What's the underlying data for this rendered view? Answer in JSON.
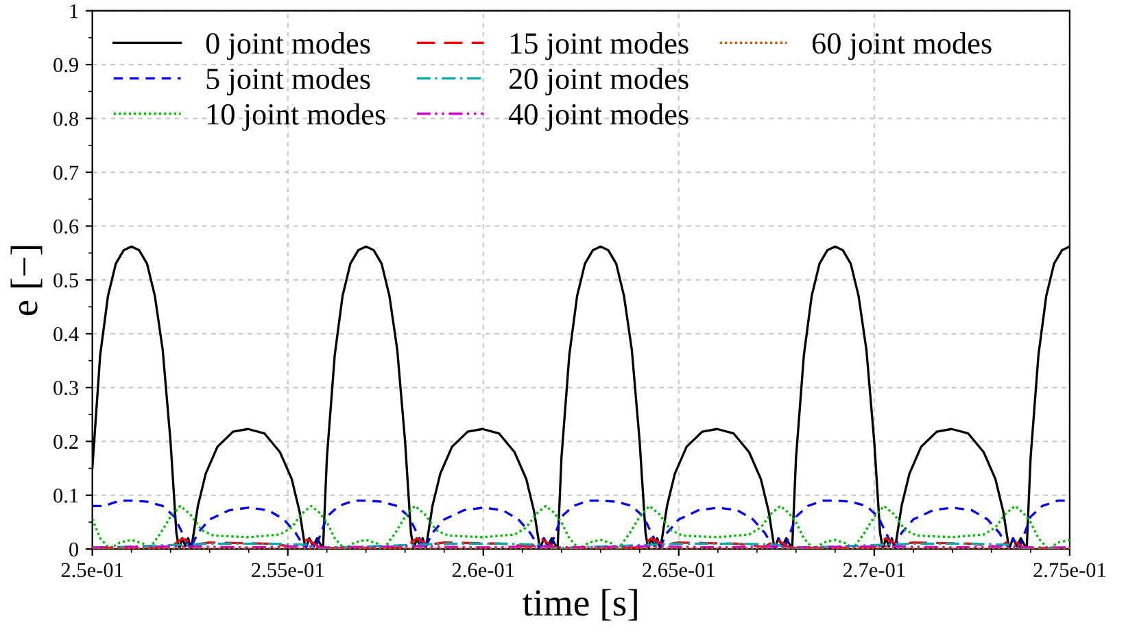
{
  "chart_data": {
    "type": "line",
    "xlabel": "time [s]",
    "ylabel": "e [−]",
    "xlim": [
      0.25,
      0.275
    ],
    "ylim": [
      0,
      1
    ],
    "xticks": [
      {
        "value": 0.25,
        "label": "2.5e-01"
      },
      {
        "value": 0.255,
        "label": "2.55e-01"
      },
      {
        "value": 0.26,
        "label": "2.6e-01"
      },
      {
        "value": 0.265,
        "label": "2.65e-01"
      },
      {
        "value": 0.27,
        "label": "2.7e-01"
      },
      {
        "value": 0.275,
        "label": "2.75e-01"
      }
    ],
    "yticks": [
      0,
      0.1,
      0.2,
      0.3,
      0.4,
      0.5,
      0.6,
      0.7,
      0.8,
      0.9,
      1
    ],
    "grid": true,
    "legend": "top left",
    "marker": "none",
    "series": [
      {
        "name": "0 joint modes",
        "color": "#000000",
        "line_style": "solid",
        "x": [
          0.25,
          0.2502,
          0.2504,
          0.2506,
          0.2508,
          0.251,
          0.2512,
          0.2514,
          0.2516,
          0.2518,
          0.252,
          0.25215,
          0.25222,
          0.2523,
          0.25238,
          0.25245,
          0.25253,
          0.2527,
          0.2529,
          0.2532,
          0.2536,
          0.25398,
          0.2544,
          0.2548,
          0.2551,
          0.2553,
          0.25545,
          0.25555,
          0.25565,
          0.25575,
          0.2559,
          0.256,
          0.2562,
          0.2564,
          0.2566,
          0.2568,
          0.257,
          0.2572,
          0.2574,
          0.2576,
          0.2578,
          0.258,
          0.25815,
          0.25822,
          0.2583,
          0.25838,
          0.25845,
          0.25853,
          0.2587,
          0.2589,
          0.2592,
          0.2596,
          0.25998,
          0.2604,
          0.2608,
          0.2611,
          0.2613,
          0.26145,
          0.26155,
          0.26165,
          0.26175,
          0.2619,
          0.262,
          0.2622,
          0.2624,
          0.2626,
          0.2628,
          0.263,
          0.2632,
          0.2634,
          0.2636,
          0.2638,
          0.264,
          0.26415,
          0.26422,
          0.2643,
          0.26438,
          0.26445,
          0.26453,
          0.2647,
          0.2649,
          0.2652,
          0.2656,
          0.26598,
          0.2664,
          0.2668,
          0.2671,
          0.2673,
          0.26745,
          0.26755,
          0.26765,
          0.26775,
          0.2679,
          0.268,
          0.2682,
          0.2684,
          0.2686,
          0.2688,
          0.269,
          0.2692,
          0.2694,
          0.2696,
          0.2698,
          0.27,
          0.27015,
          0.27022,
          0.2703,
          0.27038,
          0.27045,
          0.27053,
          0.2707,
          0.2709,
          0.2712,
          0.2716,
          0.27198,
          0.2724,
          0.2728,
          0.2731,
          0.2733,
          0.27345,
          0.27355,
          0.27365,
          0.27375,
          0.2739,
          0.274,
          0.2742,
          0.2744,
          0.2746,
          0.2748,
          0.275
        ],
        "values": [
          0.15,
          0.36,
          0.47,
          0.53,
          0.555,
          0.562,
          0.555,
          0.53,
          0.47,
          0.37,
          0.2,
          0.03,
          0,
          0.02,
          0.005,
          0.02,
          0,
          0.08,
          0.14,
          0.19,
          0.218,
          0.223,
          0.215,
          0.18,
          0.13,
          0.07,
          0,
          0.02,
          0.005,
          0.02,
          0,
          0.17,
          0.36,
          0.47,
          0.53,
          0.555,
          0.562,
          0.555,
          0.53,
          0.47,
          0.37,
          0.2,
          0.03,
          0,
          0.02,
          0.005,
          0.02,
          0,
          0.08,
          0.14,
          0.19,
          0.218,
          0.223,
          0.215,
          0.18,
          0.13,
          0.07,
          0,
          0.02,
          0.005,
          0.02,
          0,
          0.17,
          0.36,
          0.47,
          0.53,
          0.555,
          0.562,
          0.555,
          0.53,
          0.47,
          0.37,
          0.2,
          0.03,
          0,
          0.02,
          0.005,
          0.02,
          0,
          0.08,
          0.14,
          0.19,
          0.218,
          0.223,
          0.215,
          0.18,
          0.13,
          0.07,
          0,
          0.02,
          0.005,
          0.02,
          0,
          0.17,
          0.36,
          0.47,
          0.53,
          0.555,
          0.562,
          0.555,
          0.53,
          0.47,
          0.37,
          0.2,
          0.03,
          0,
          0.02,
          0.005,
          0.02,
          0,
          0.08,
          0.14,
          0.19,
          0.218,
          0.223,
          0.215,
          0.18,
          0.13,
          0.07,
          0,
          0.02,
          0.005,
          0.02,
          0,
          0.17,
          0.36,
          0.47,
          0.53,
          0.555,
          0.562
        ]
      },
      {
        "name": "5 joint modes",
        "color": "#0000ff",
        "line_style": "dashed",
        "x": [
          0.25,
          0.2503,
          0.2507,
          0.251,
          0.2514,
          0.2518,
          0.2521,
          0.2523,
          0.2525,
          0.2527,
          0.253,
          0.2535,
          0.254,
          0.2545,
          0.2549,
          0.2552,
          0.25545,
          0.25555,
          0.2557,
          0.256,
          0.2563,
          0.2567,
          0.257,
          0.2574,
          0.2578,
          0.2581,
          0.2583,
          0.2585,
          0.2587,
          0.259,
          0.2595,
          0.26,
          0.2605,
          0.2609,
          0.2612,
          0.26145,
          0.26155,
          0.2617,
          0.262,
          0.2623,
          0.2627,
          0.263,
          0.2634,
          0.2638,
          0.2641,
          0.2643,
          0.2645,
          0.2647,
          0.265,
          0.2655,
          0.266,
          0.2665,
          0.2669,
          0.2672,
          0.26745,
          0.26755,
          0.2677,
          0.268,
          0.2683,
          0.2687,
          0.269,
          0.2694,
          0.2698,
          0.2701,
          0.2703,
          0.2705,
          0.2707,
          0.271,
          0.2715,
          0.272,
          0.2725,
          0.2729,
          0.2732,
          0.27345,
          0.27355,
          0.2737,
          0.274,
          0.2743,
          0.2747,
          0.275
        ],
        "values": [
          0.08,
          0.08,
          0.09,
          0.09,
          0.088,
          0.08,
          0.06,
          0.03,
          0,
          0.03,
          0.055,
          0.072,
          0.077,
          0.072,
          0.055,
          0.03,
          0,
          0.02,
          0,
          0.06,
          0.08,
          0.09,
          0.09,
          0.088,
          0.08,
          0.06,
          0.03,
          0,
          0.03,
          0.055,
          0.072,
          0.077,
          0.072,
          0.055,
          0.03,
          0,
          0.02,
          0,
          0.06,
          0.08,
          0.09,
          0.09,
          0.088,
          0.08,
          0.06,
          0.03,
          0,
          0.03,
          0.055,
          0.072,
          0.077,
          0.072,
          0.055,
          0.03,
          0,
          0.02,
          0,
          0.06,
          0.08,
          0.09,
          0.09,
          0.088,
          0.08,
          0.06,
          0.03,
          0,
          0.03,
          0.055,
          0.072,
          0.077,
          0.072,
          0.055,
          0.03,
          0,
          0.02,
          0,
          0.06,
          0.08,
          0.09,
          0.09
        ]
      },
      {
        "name": "10 joint modes",
        "color": "#00bb00",
        "line_style": "dotted",
        "x": [
          0.25,
          0.2502,
          0.25045,
          0.2507,
          0.251,
          0.2513,
          0.25145,
          0.25175,
          0.252,
          0.25225,
          0.2525,
          0.2528,
          0.2531,
          0.254,
          0.2548,
          0.2551,
          0.25535,
          0.2556,
          0.2558,
          0.256,
          0.2562,
          0.25645,
          0.2567,
          0.257,
          0.2573,
          0.25745,
          0.25775,
          0.258,
          0.25825,
          0.2585,
          0.2588,
          0.2591,
          0.26,
          0.2608,
          0.2611,
          0.26135,
          0.2616,
          0.2618,
          0.262,
          0.2622,
          0.26245,
          0.2627,
          0.263,
          0.2633,
          0.26345,
          0.26375,
          0.264,
          0.26425,
          0.2645,
          0.2648,
          0.2651,
          0.266,
          0.2668,
          0.2671,
          0.26735,
          0.2676,
          0.2678,
          0.268,
          0.2682,
          0.26845,
          0.2687,
          0.269,
          0.2693,
          0.26945,
          0.26975,
          0.27,
          0.27025,
          0.2705,
          0.2708,
          0.2711,
          0.272,
          0.2728,
          0.2731,
          0.27335,
          0.2736,
          0.2738,
          0.274,
          0.2742,
          0.27445,
          0.2747,
          0.275
        ],
        "values": [
          0.056,
          0.02,
          0,
          0.012,
          0.017,
          0.01,
          0,
          0.03,
          0.06,
          0.08,
          0.065,
          0.035,
          0.025,
          0.022,
          0.027,
          0.04,
          0.065,
          0.08,
          0.068,
          0.05,
          0.02,
          0,
          0.012,
          0.017,
          0.01,
          0,
          0.03,
          0.06,
          0.08,
          0.065,
          0.035,
          0.025,
          0.022,
          0.027,
          0.04,
          0.065,
          0.08,
          0.068,
          0.05,
          0.02,
          0,
          0.012,
          0.017,
          0.01,
          0,
          0.03,
          0.06,
          0.08,
          0.065,
          0.035,
          0.025,
          0.022,
          0.027,
          0.04,
          0.065,
          0.08,
          0.068,
          0.05,
          0.02,
          0,
          0.012,
          0.017,
          0.01,
          0,
          0.03,
          0.06,
          0.08,
          0.065,
          0.035,
          0.025,
          0.022,
          0.027,
          0.04,
          0.065,
          0.08,
          0.068,
          0.05,
          0.02,
          0,
          0.012,
          0.017
        ]
      },
      {
        "name": "15 joint modes",
        "color": "#ff0000",
        "line_style": "longdash",
        "x": [
          0.25,
          0.252,
          0.2523,
          0.2526,
          0.253,
          0.2545,
          0.2552,
          0.2555,
          0.2558,
          0.256,
          0.258,
          0.2583,
          0.2586,
          0.259,
          0.2605,
          0.2612,
          0.2615,
          0.2618,
          0.262,
          0.264,
          0.2643,
          0.2646,
          0.265,
          0.2665,
          0.2672,
          0.2675,
          0.2678,
          0.268,
          0.27,
          0.2703,
          0.2706,
          0.271,
          0.2725,
          0.2732,
          0.2735,
          0.2738,
          0.274,
          0.275
        ],
        "values": [
          0.002,
          0.003,
          0.02,
          0.008,
          0.012,
          0.01,
          0.004,
          0.018,
          0.004,
          0.002,
          0.003,
          0.02,
          0.008,
          0.012,
          0.01,
          0.004,
          0.018,
          0.004,
          0.002,
          0.003,
          0.02,
          0.008,
          0.012,
          0.01,
          0.004,
          0.018,
          0.004,
          0.002,
          0.003,
          0.02,
          0.008,
          0.012,
          0.01,
          0.004,
          0.018,
          0.004,
          0.002,
          0.002
        ]
      },
      {
        "name": "20 joint modes",
        "color": "#00aaaa",
        "line_style": "dashdot",
        "x": [
          0.25,
          0.2523,
          0.253,
          0.2545,
          0.2555,
          0.2558,
          0.256,
          0.2583,
          0.259,
          0.2605,
          0.2615,
          0.2618,
          0.262,
          0.2643,
          0.265,
          0.2665,
          0.2675,
          0.2678,
          0.268,
          0.2703,
          0.271,
          0.2725,
          0.2735,
          0.2738,
          0.274,
          0.275
        ],
        "values": [
          0.002,
          0.008,
          0.01,
          0.01,
          0.008,
          0.002,
          0.002,
          0.008,
          0.01,
          0.01,
          0.008,
          0.002,
          0.002,
          0.008,
          0.01,
          0.01,
          0.008,
          0.002,
          0.002,
          0.008,
          0.01,
          0.01,
          0.008,
          0.002,
          0.002,
          0.002
        ]
      },
      {
        "name": "40 joint modes",
        "color": "#cc00cc",
        "line_style": "dashdotdot",
        "x": [
          0.25,
          0.2523,
          0.254,
          0.2555,
          0.256,
          0.2583,
          0.26,
          0.2615,
          0.262,
          0.2643,
          0.266,
          0.2675,
          0.268,
          0.2703,
          0.272,
          0.2735,
          0.274,
          0.275
        ],
        "values": [
          0.003,
          0.005,
          0.003,
          0.005,
          0.003,
          0.005,
          0.003,
          0.005,
          0.003,
          0.005,
          0.003,
          0.005,
          0.003,
          0.005,
          0.003,
          0.005,
          0.003,
          0.003
        ]
      },
      {
        "name": "60 joint modes",
        "color": "#cc5500",
        "line_style": "dotted",
        "x": [
          0.25,
          0.2625,
          0.275
        ],
        "values": [
          0.001,
          0.001,
          0.001
        ]
      }
    ]
  }
}
